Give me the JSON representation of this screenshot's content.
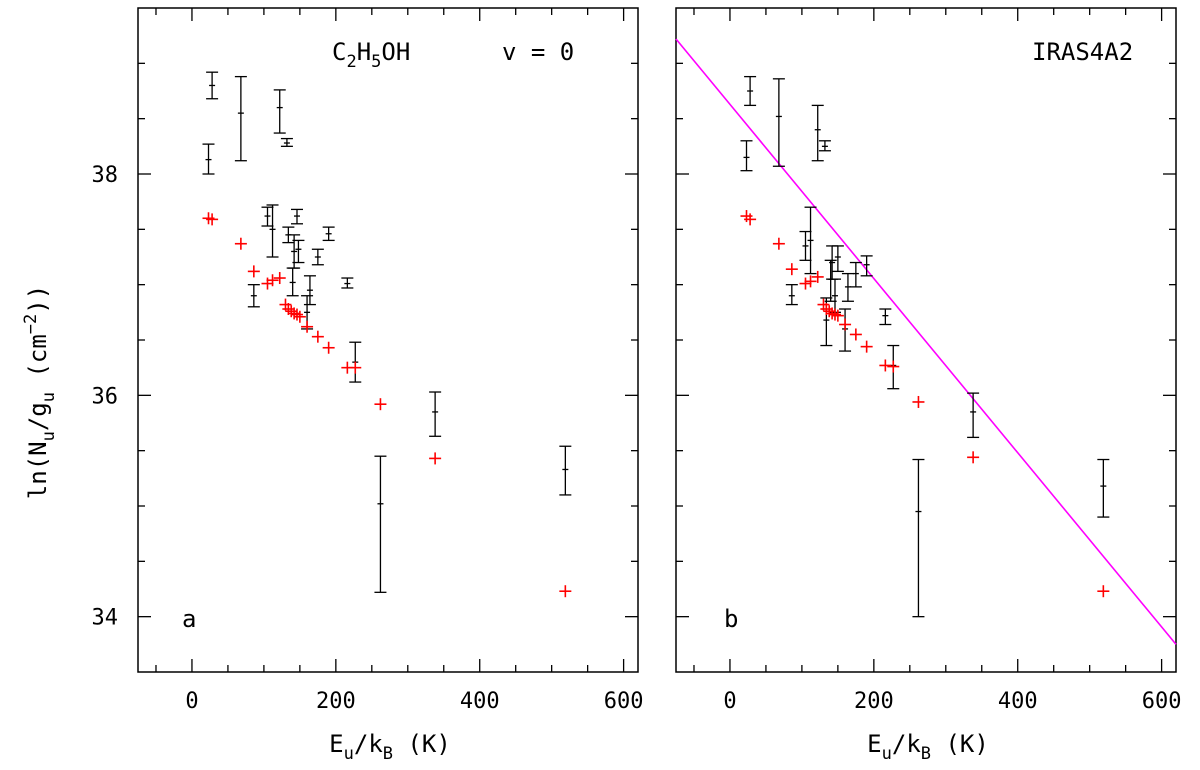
{
  "colors": {
    "observed": "#000000",
    "model": "#ff0000",
    "fit_line": "#ff00ff",
    "frame": "#000000"
  },
  "ylabel": "ln(N_u/g_u (cm^-2))",
  "chart_data": [
    {
      "type": "scatter",
      "panel_label": "a",
      "title_molecule": "C2H5OH",
      "title_state": "v = 0",
      "xlabel": "E_u/k_B (K)",
      "ylabel": "ln(N_u/g_u (cm^-2))",
      "xlim": [
        -75,
        620
      ],
      "ylim": [
        33.5,
        39.5
      ],
      "xticks": [
        0,
        200,
        400,
        600
      ],
      "yticks": [
        34,
        36,
        38
      ],
      "series": [
        {
          "name": "observed",
          "style": "errorbar",
          "points": [
            {
              "x": 23,
              "y": 38.13,
              "lo": 38.0,
              "hi": 38.27
            },
            {
              "x": 28,
              "y": 38.8,
              "lo": 38.68,
              "hi": 38.92
            },
            {
              "x": 68,
              "y": 38.55,
              "lo": 38.12,
              "hi": 38.88
            },
            {
              "x": 122,
              "y": 38.6,
              "lo": 38.37,
              "hi": 38.76
            },
            {
              "x": 132,
              "y": 38.28,
              "lo": 38.25,
              "hi": 38.32
            },
            {
              "x": 86,
              "y": 36.9,
              "lo": 36.8,
              "hi": 37.0
            },
            {
              "x": 105,
              "y": 37.62,
              "lo": 37.53,
              "hi": 37.7
            },
            {
              "x": 112,
              "y": 37.5,
              "lo": 37.25,
              "hi": 37.72
            },
            {
              "x": 134,
              "y": 37.45,
              "lo": 37.38,
              "hi": 37.52
            },
            {
              "x": 140,
              "y": 37.02,
              "lo": 36.9,
              "hi": 37.15
            },
            {
              "x": 142,
              "y": 37.3,
              "lo": 37.15,
              "hi": 37.45
            },
            {
              "x": 146,
              "y": 37.62,
              "lo": 37.55,
              "hi": 37.68
            },
            {
              "x": 148,
              "y": 37.32,
              "lo": 37.2,
              "hi": 37.4
            },
            {
              "x": 160,
              "y": 36.75,
              "lo": 36.6,
              "hi": 36.9
            },
            {
              "x": 164,
              "y": 36.95,
              "lo": 36.82,
              "hi": 37.08
            },
            {
              "x": 175,
              "y": 37.25,
              "lo": 37.18,
              "hi": 37.32
            },
            {
              "x": 190,
              "y": 37.46,
              "lo": 37.4,
              "hi": 37.52
            },
            {
              "x": 216,
              "y": 37.01,
              "lo": 36.97,
              "hi": 37.06
            },
            {
              "x": 227,
              "y": 36.3,
              "lo": 36.12,
              "hi": 36.48
            },
            {
              "x": 262,
              "y": 35.02,
              "lo": 34.22,
              "hi": 35.45
            },
            {
              "x": 338,
              "y": 35.85,
              "lo": 35.63,
              "hi": 36.03
            },
            {
              "x": 519,
              "y": 35.33,
              "lo": 35.1,
              "hi": 35.54
            }
          ]
        },
        {
          "name": "model",
          "style": "plus",
          "points": [
            {
              "x": 23,
              "y": 37.6
            },
            {
              "x": 28,
              "y": 37.59
            },
            {
              "x": 68,
              "y": 37.37
            },
            {
              "x": 86,
              "y": 37.12
            },
            {
              "x": 105,
              "y": 37.01
            },
            {
              "x": 112,
              "y": 37.04
            },
            {
              "x": 122,
              "y": 37.06
            },
            {
              "x": 130,
              "y": 36.82
            },
            {
              "x": 134,
              "y": 36.78
            },
            {
              "x": 138,
              "y": 36.76
            },
            {
              "x": 142,
              "y": 36.74
            },
            {
              "x": 146,
              "y": 36.73
            },
            {
              "x": 150,
              "y": 36.71
            },
            {
              "x": 160,
              "y": 36.62
            },
            {
              "x": 175,
              "y": 36.53
            },
            {
              "x": 190,
              "y": 36.43
            },
            {
              "x": 216,
              "y": 36.25
            },
            {
              "x": 227,
              "y": 36.25
            },
            {
              "x": 262,
              "y": 35.92
            },
            {
              "x": 338,
              "y": 35.43
            },
            {
              "x": 519,
              "y": 34.23
            }
          ]
        }
      ]
    },
    {
      "type": "scatter",
      "panel_label": "b",
      "source_label": "IRAS4A2",
      "xlabel": "E_u/k_B (K)",
      "xlim": [
        -75,
        620
      ],
      "ylim": [
        33.5,
        39.5
      ],
      "xticks": [
        0,
        200,
        400,
        600
      ],
      "yticks": [
        34,
        36,
        38
      ],
      "fit_line": {
        "x": [
          -75,
          620
        ],
        "y": [
          39.22,
          33.75
        ]
      },
      "series": [
        {
          "name": "observed",
          "style": "errorbar",
          "points": [
            {
              "x": 23,
              "y": 38.15,
              "lo": 38.03,
              "hi": 38.3
            },
            {
              "x": 28,
              "y": 38.75,
              "lo": 38.62,
              "hi": 38.88
            },
            {
              "x": 68,
              "y": 38.52,
              "lo": 38.07,
              "hi": 38.86
            },
            {
              "x": 122,
              "y": 38.4,
              "lo": 38.12,
              "hi": 38.62
            },
            {
              "x": 132,
              "y": 38.25,
              "lo": 38.21,
              "hi": 38.3
            },
            {
              "x": 86,
              "y": 36.9,
              "lo": 36.82,
              "hi": 37.0
            },
            {
              "x": 105,
              "y": 37.35,
              "lo": 37.22,
              "hi": 37.48
            },
            {
              "x": 112,
              "y": 37.4,
              "lo": 37.1,
              "hi": 37.7
            },
            {
              "x": 134,
              "y": 36.68,
              "lo": 36.45,
              "hi": 36.88
            },
            {
              "x": 140,
              "y": 37.05,
              "lo": 36.85,
              "hi": 37.22
            },
            {
              "x": 142,
              "y": 37.2,
              "lo": 37.05,
              "hi": 37.35
            },
            {
              "x": 146,
              "y": 36.9,
              "lo": 36.75,
              "hi": 37.05
            },
            {
              "x": 150,
              "y": 37.25,
              "lo": 37.12,
              "hi": 37.35
            },
            {
              "x": 160,
              "y": 36.6,
              "lo": 36.4,
              "hi": 36.78
            },
            {
              "x": 164,
              "y": 36.98,
              "lo": 36.85,
              "hi": 37.1
            },
            {
              "x": 175,
              "y": 37.1,
              "lo": 36.98,
              "hi": 37.2
            },
            {
              "x": 190,
              "y": 37.18,
              "lo": 37.08,
              "hi": 37.26
            },
            {
              "x": 216,
              "y": 36.72,
              "lo": 36.64,
              "hi": 36.78
            },
            {
              "x": 227,
              "y": 36.27,
              "lo": 36.06,
              "hi": 36.45
            },
            {
              "x": 262,
              "y": 34.95,
              "lo": 34.0,
              "hi": 35.42
            },
            {
              "x": 338,
              "y": 35.85,
              "lo": 35.62,
              "hi": 36.02
            },
            {
              "x": 519,
              "y": 35.18,
              "lo": 34.9,
              "hi": 35.42
            }
          ]
        },
        {
          "name": "model",
          "style": "plus",
          "points": [
            {
              "x": 23,
              "y": 37.62
            },
            {
              "x": 28,
              "y": 37.59
            },
            {
              "x": 68,
              "y": 37.37
            },
            {
              "x": 86,
              "y": 37.14
            },
            {
              "x": 105,
              "y": 37.01
            },
            {
              "x": 112,
              "y": 37.03
            },
            {
              "x": 122,
              "y": 37.07
            },
            {
              "x": 130,
              "y": 36.82
            },
            {
              "x": 134,
              "y": 36.78
            },
            {
              "x": 138,
              "y": 36.76
            },
            {
              "x": 142,
              "y": 36.74
            },
            {
              "x": 146,
              "y": 36.73
            },
            {
              "x": 150,
              "y": 36.72
            },
            {
              "x": 160,
              "y": 36.64
            },
            {
              "x": 175,
              "y": 36.55
            },
            {
              "x": 190,
              "y": 36.44
            },
            {
              "x": 216,
              "y": 36.27
            },
            {
              "x": 227,
              "y": 36.26
            },
            {
              "x": 262,
              "y": 35.94
            },
            {
              "x": 338,
              "y": 35.44
            },
            {
              "x": 519,
              "y": 34.23
            }
          ]
        }
      ]
    }
  ]
}
